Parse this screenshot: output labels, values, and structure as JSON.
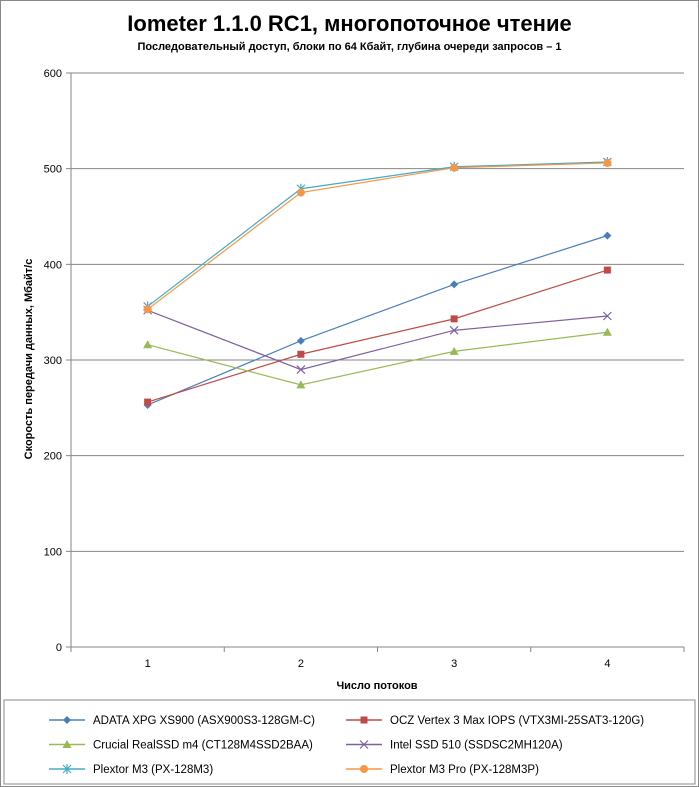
{
  "chart_data": {
    "type": "line",
    "title": "Iometer 1.1.0 RC1, многопоточное чтение",
    "subtitle": "Последовательный  доступ, блоки  по 64 Кбайт,  глубина очереди запросов  – 1",
    "xlabel": "Число  потоков",
    "ylabel": "Скорость  передачи данных, Мбайт/с",
    "categories": [
      "1",
      "2",
      "3",
      "4"
    ],
    "ylim": [
      0,
      600
    ],
    "yticks": [
      "0",
      "100",
      "200",
      "300",
      "400",
      "500",
      "600"
    ],
    "grid": true,
    "legend_position": "bottom",
    "series": [
      {
        "name": "ADATA XPG XS900 (ASX900S3-128GM-C)",
        "color": "#4a7ebb",
        "marker": "diamond",
        "values": [
          253,
          320,
          379,
          430
        ]
      },
      {
        "name": "OCZ Vertex 3 Max IOPS (VTX3MI-25SAT3-120G)",
        "color": "#be4b48",
        "marker": "square",
        "values": [
          256,
          306,
          343,
          394
        ]
      },
      {
        "name": "Crucial RealSSD m4 (CT128M4SSD2BAA)",
        "color": "#98b954",
        "marker": "triangle",
        "values": [
          316,
          274,
          309,
          329
        ]
      },
      {
        "name": "Intel SSD 510 (SSDSC2MH120A)",
        "color": "#7d60a0",
        "marker": "x",
        "values": [
          352,
          290,
          331,
          346
        ]
      },
      {
        "name": "Plextor M3 (PX-128M3)",
        "color": "#46aac5",
        "marker": "star",
        "values": [
          356,
          479,
          502,
          507
        ]
      },
      {
        "name": "Plextor M3 Pro (PX-128M3P)",
        "color": "#f79646",
        "marker": "circle",
        "values": [
          353,
          475,
          501,
          506
        ]
      }
    ]
  }
}
